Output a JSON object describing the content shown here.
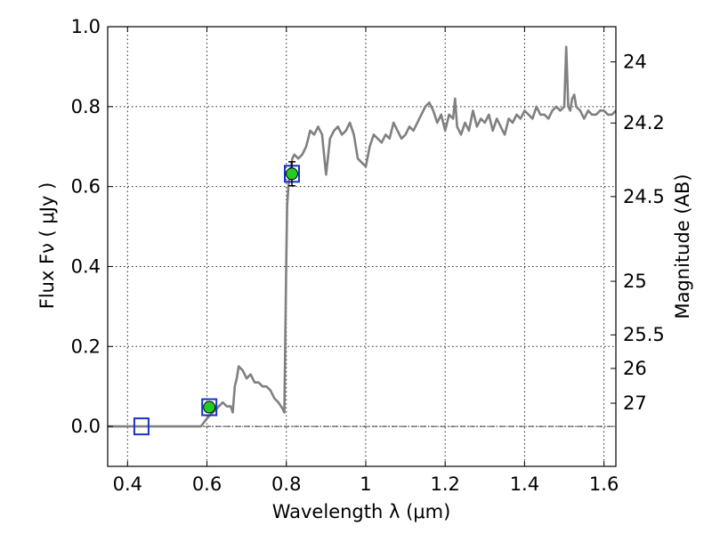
{
  "chart_data": {
    "type": "line",
    "xlabel": "Wavelength  λ (μm)",
    "ylabel": "Flux  Fν  ( μJy )",
    "y2label": "Magnitude (AB)",
    "xlim": [
      0.35,
      1.63
    ],
    "ylim": [
      -0.1,
      1.0
    ],
    "grid": true,
    "x_ticks": [
      0.4,
      0.6,
      0.8,
      1.0,
      1.2,
      1.4,
      1.6
    ],
    "x_tick_labels": [
      "0.4",
      "0.6",
      "0.8",
      "1",
      "1.2",
      "1.4",
      "1.6"
    ],
    "y_ticks": [
      0.0,
      0.2,
      0.4,
      0.6,
      0.8,
      1.0
    ],
    "y_tick_labels": [
      "0.0",
      "0.2",
      "0.4",
      "0.6",
      "0.8",
      "1.0"
    ],
    "y2_ticks": [
      {
        "label": "24",
        "flux": 0.912
      },
      {
        "label": "24.2",
        "flux": 0.759
      },
      {
        "label": "24.5",
        "flux": 0.575
      },
      {
        "label": "25",
        "flux": 0.363
      },
      {
        "label": "25.5",
        "flux": 0.229
      },
      {
        "label": "26",
        "flux": 0.145
      },
      {
        "label": "27",
        "flux": 0.058
      }
    ],
    "reference_line_y": 0.0,
    "colors": {
      "spectrum": "#808080",
      "square": "#1533c9",
      "point": "#22cc22",
      "errorbar": "#000000"
    },
    "series": [
      {
        "kind": "spectrum",
        "x": [
          0.35,
          0.4,
          0.45,
          0.5,
          0.55,
          0.585,
          0.6,
          0.62,
          0.63,
          0.64,
          0.65,
          0.66,
          0.665,
          0.67,
          0.675,
          0.68,
          0.69,
          0.7,
          0.71,
          0.72,
          0.73,
          0.74,
          0.75,
          0.76,
          0.77,
          0.78,
          0.79,
          0.795,
          0.8,
          0.802,
          0.805,
          0.81,
          0.815,
          0.82,
          0.83,
          0.84,
          0.85,
          0.855,
          0.86,
          0.87,
          0.88,
          0.89,
          0.895,
          0.9,
          0.91,
          0.92,
          0.93,
          0.94,
          0.95,
          0.96,
          0.97,
          0.98,
          0.99,
          1.0,
          1.01,
          1.02,
          1.03,
          1.04,
          1.05,
          1.06,
          1.07,
          1.08,
          1.09,
          1.1,
          1.11,
          1.12,
          1.13,
          1.14,
          1.15,
          1.16,
          1.17,
          1.18,
          1.19,
          1.2,
          1.21,
          1.22,
          1.225,
          1.23,
          1.24,
          1.25,
          1.26,
          1.27,
          1.28,
          1.29,
          1.3,
          1.31,
          1.32,
          1.33,
          1.34,
          1.35,
          1.36,
          1.37,
          1.38,
          1.39,
          1.4,
          1.41,
          1.42,
          1.43,
          1.44,
          1.45,
          1.46,
          1.47,
          1.48,
          1.49,
          1.5,
          1.505,
          1.51,
          1.515,
          1.52,
          1.525,
          1.53,
          1.54,
          1.55,
          1.56,
          1.57,
          1.58,
          1.59,
          1.6,
          1.61,
          1.62,
          1.63
        ],
        "y": [
          0.0,
          0.0,
          0.0,
          0.0,
          0.0,
          0.0,
          0.02,
          0.04,
          0.05,
          0.06,
          0.05,
          0.05,
          0.035,
          0.1,
          0.12,
          0.15,
          0.14,
          0.12,
          0.13,
          0.11,
          0.11,
          0.1,
          0.1,
          0.09,
          0.07,
          0.06,
          0.045,
          0.035,
          0.42,
          0.55,
          0.6,
          0.64,
          0.67,
          0.68,
          0.67,
          0.68,
          0.7,
          0.72,
          0.74,
          0.73,
          0.75,
          0.73,
          0.68,
          0.63,
          0.72,
          0.74,
          0.75,
          0.73,
          0.74,
          0.76,
          0.73,
          0.67,
          0.66,
          0.65,
          0.7,
          0.73,
          0.72,
          0.71,
          0.73,
          0.72,
          0.76,
          0.74,
          0.72,
          0.73,
          0.75,
          0.74,
          0.76,
          0.78,
          0.8,
          0.81,
          0.79,
          0.76,
          0.78,
          0.74,
          0.78,
          0.77,
          0.82,
          0.75,
          0.73,
          0.76,
          0.74,
          0.79,
          0.75,
          0.77,
          0.76,
          0.78,
          0.74,
          0.77,
          0.75,
          0.73,
          0.77,
          0.76,
          0.78,
          0.77,
          0.79,
          0.78,
          0.77,
          0.8,
          0.78,
          0.78,
          0.77,
          0.79,
          0.8,
          0.79,
          0.8,
          0.95,
          0.8,
          0.79,
          0.82,
          0.83,
          0.8,
          0.79,
          0.77,
          0.79,
          0.78,
          0.78,
          0.79,
          0.79,
          0.78,
          0.78,
          0.79
        ]
      },
      {
        "kind": "photometry",
        "points": [
          {
            "x": 0.435,
            "y": 0.0,
            "yerr": 0.0,
            "filled": false
          },
          {
            "x": 0.606,
            "y": 0.048,
            "yerr": 0.012,
            "filled": true
          },
          {
            "x": 0.814,
            "y": 0.632,
            "yerr": 0.03,
            "filled": true
          }
        ]
      }
    ]
  }
}
